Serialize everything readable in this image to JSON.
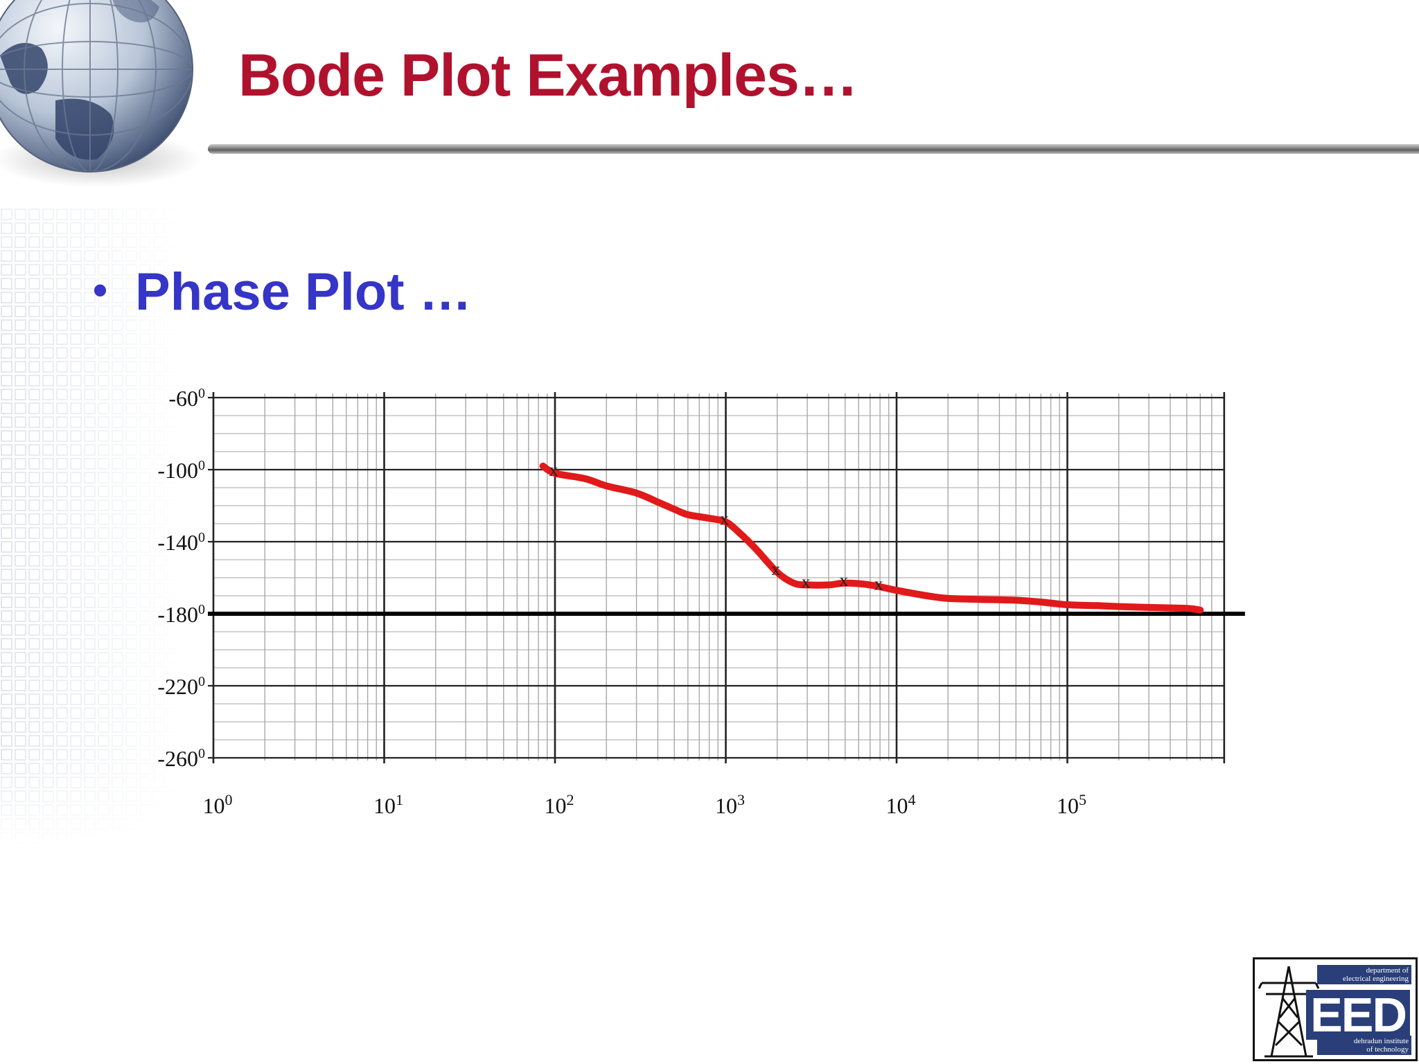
{
  "slide": {
    "title": "Bode Plot Examples…",
    "bullet": "Phase Plot …"
  },
  "logo": {
    "dept_line1": "department of",
    "dept_line2": "electrical engineering",
    "letters": "EED",
    "inst_line1": "dehradun institute",
    "inst_line2": "of technology",
    "icon": "transmission-tower-icon"
  },
  "colors": {
    "title": "#b0122e",
    "bullet": "#3535c8",
    "curve": "#e01a1a"
  },
  "chart_data": {
    "type": "line",
    "x_scale": "log",
    "xlim": [
      1,
      700000
    ],
    "ylim": [
      -260,
      -60
    ],
    "x_ticks": [
      {
        "value": 1,
        "base": "10",
        "exp": "0"
      },
      {
        "value": 10,
        "base": "10",
        "exp": "1"
      },
      {
        "value": 100,
        "base": "10",
        "exp": "2"
      },
      {
        "value": 1000,
        "base": "10",
        "exp": "3"
      },
      {
        "value": 10000,
        "base": "10",
        "exp": "4"
      },
      {
        "value": 100000,
        "base": "10",
        "exp": "5"
      }
    ],
    "y_ticks": [
      {
        "value": -60,
        "label": "-60",
        "deg": "0"
      },
      {
        "value": -100,
        "label": "-100",
        "deg": "0"
      },
      {
        "value": -140,
        "label": "-140",
        "deg": "0"
      },
      {
        "value": -180,
        "label": "-180",
        "deg": "0"
      },
      {
        "value": -220,
        "label": "-220",
        "deg": "0"
      },
      {
        "value": -260,
        "label": "-260",
        "deg": "0"
      }
    ],
    "reference_line_y": -180,
    "grid": true,
    "series": [
      {
        "x": [
          85,
          100,
          150,
          200,
          300,
          400,
          500,
          600,
          800,
          1000,
          1200,
          1500,
          2000,
          2500,
          3000,
          4000,
          5000,
          7000,
          10000,
          15000,
          20000,
          30000,
          50000,
          70000,
          100000,
          150000,
          200000,
          300000,
          500000,
          600000
        ],
        "y": [
          -98,
          -102,
          -105,
          -109,
          -113,
          -118,
          -122,
          -125,
          -127,
          -129,
          -135,
          -144,
          -157,
          -163,
          -164,
          -164,
          -163,
          -164,
          -167,
          -170,
          -171.5,
          -172,
          -172.5,
          -173.5,
          -175,
          -175.5,
          -176,
          -176.5,
          -177,
          -178
        ]
      }
    ],
    "markers": {
      "symbol": "x",
      "x": [
        100,
        1000,
        2000,
        3000,
        5000,
        8000
      ]
    }
  }
}
